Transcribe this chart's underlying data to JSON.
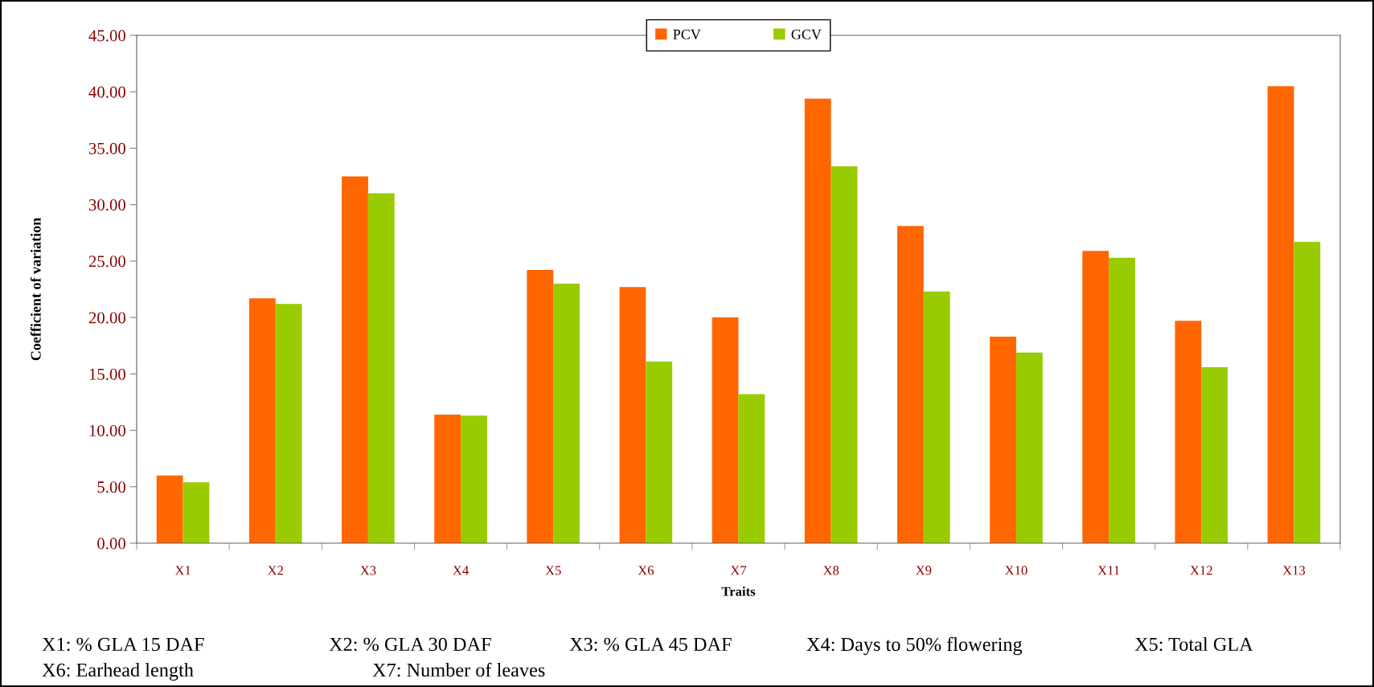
{
  "chart_data": {
    "type": "bar",
    "xlabel": "Traits",
    "ylabel": "Coefficient of variation",
    "categories": [
      "X1",
      "X2",
      "X3",
      "X4",
      "X5",
      "X6",
      "X7",
      "X8",
      "X9",
      "X10",
      "X11",
      "X12",
      "X13"
    ],
    "series": [
      {
        "name": "PCV",
        "color": "#ff6600",
        "values": [
          6.0,
          21.7,
          32.5,
          11.4,
          24.2,
          22.7,
          20.0,
          39.4,
          28.1,
          18.3,
          25.9,
          19.7,
          40.5
        ]
      },
      {
        "name": "GCV",
        "color": "#99cc00",
        "values": [
          5.4,
          21.2,
          31.0,
          11.3,
          23.0,
          16.1,
          13.2,
          33.4,
          22.3,
          16.9,
          25.3,
          15.6,
          26.7
        ]
      }
    ],
    "ylim": [
      0,
      45
    ],
    "yticks": [
      {
        "value": 0,
        "label": "0.00"
      },
      {
        "value": 5,
        "label": "5.00"
      },
      {
        "value": 10,
        "label": "10.00"
      },
      {
        "value": 15,
        "label": "15.00"
      },
      {
        "value": 20,
        "label": "20.00"
      },
      {
        "value": 25,
        "label": "25.00"
      },
      {
        "value": 30,
        "label": "30.00"
      },
      {
        "value": 35,
        "label": "35.00"
      },
      {
        "value": 40,
        "label": "40.00"
      },
      {
        "value": 45,
        "label": "45.00"
      }
    ],
    "grid": false,
    "legend": "top",
    "annotations": [
      "X1: % GLA 15 DAF",
      "X2: % GLA 30 DAF",
      "X3: % GLA 45 DAF",
      "X4: Days to 50% flowering",
      "X5: Total GLA",
      "X6: Earhead length",
      "X7: Number of leaves"
    ]
  }
}
